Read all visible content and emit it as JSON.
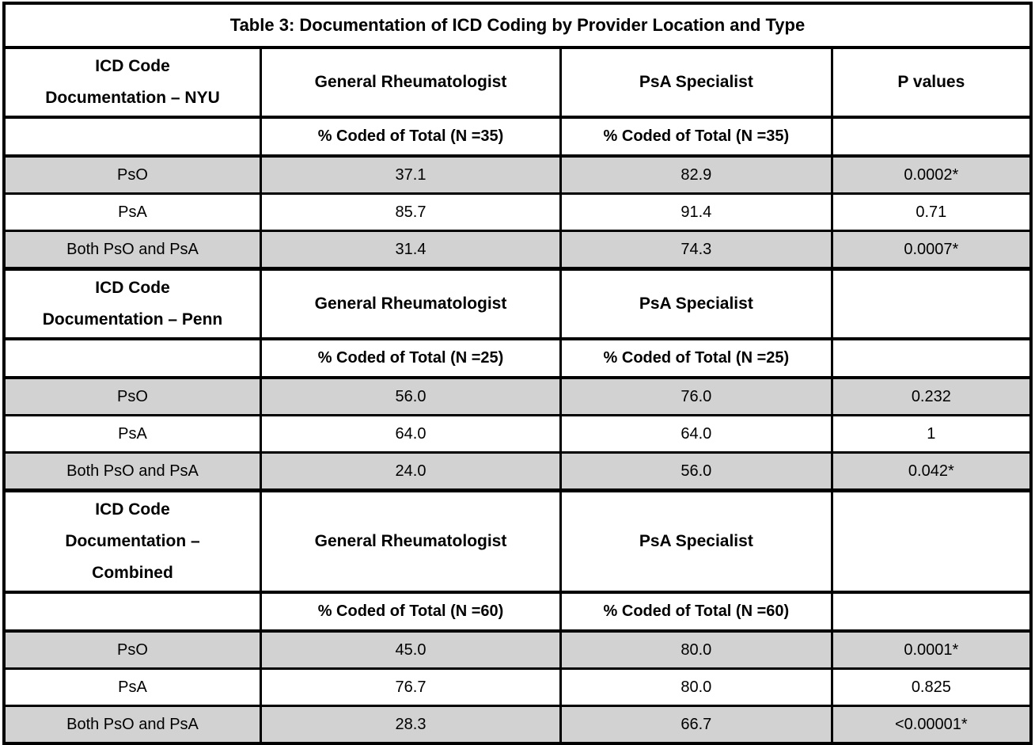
{
  "table": {
    "title": "Table 3: Documentation of ICD Coding by Provider Location and Type",
    "colors": {
      "stripe_gray": "#d2d2d2",
      "border": "#000000",
      "background": "#ffffff"
    },
    "sections": [
      {
        "label_lines": [
          "ICD Code",
          "Documentation – NYU"
        ],
        "col_general": "General Rheumatologist",
        "col_specialist": "PsA Specialist",
        "col_p": "P values",
        "sub_general": "% Coded of Total (N =35)",
        "sub_specialist": "% Coded of Total (N =35)",
        "rows": [
          {
            "label": "PsO",
            "general": "37.1",
            "specialist": "82.9",
            "p": "0.0002*"
          },
          {
            "label": "PsA",
            "general": "85.7",
            "specialist": "91.4",
            "p": "0.71"
          },
          {
            "label": "Both PsO and PsA",
            "general": "31.4",
            "specialist": "74.3",
            "p": "0.0007*"
          }
        ]
      },
      {
        "label_lines": [
          "ICD Code",
          "Documentation – Penn"
        ],
        "col_general": "General Rheumatologist",
        "col_specialist": "PsA Specialist",
        "col_p": "",
        "sub_general": "% Coded of Total (N =25)",
        "sub_specialist": "% Coded of Total (N =25)",
        "rows": [
          {
            "label": "PsO",
            "general": "56.0",
            "specialist": "76.0",
            "p": "0.232"
          },
          {
            "label": "PsA",
            "general": "64.0",
            "specialist": "64.0",
            "p": "1"
          },
          {
            "label": "Both PsO and PsA",
            "general": "24.0",
            "specialist": "56.0",
            "p": "0.042*"
          }
        ]
      },
      {
        "label_lines": [
          "ICD Code",
          "Documentation –",
          "Combined"
        ],
        "col_general": "General Rheumatologist",
        "col_specialist": "PsA Specialist",
        "col_p": "",
        "sub_general": "% Coded of Total (N =60)",
        "sub_specialist": "% Coded of Total (N =60)",
        "rows": [
          {
            "label": "PsO",
            "general": "45.0",
            "specialist": "80.0",
            "p": "0.0001*"
          },
          {
            "label": "PsA",
            "general": "76.7",
            "specialist": "80.0",
            "p": "0.825"
          },
          {
            "label": "Both PsO and PsA",
            "general": "28.3",
            "specialist": "66.7",
            "p": "<0.00001*"
          }
        ]
      }
    ]
  }
}
